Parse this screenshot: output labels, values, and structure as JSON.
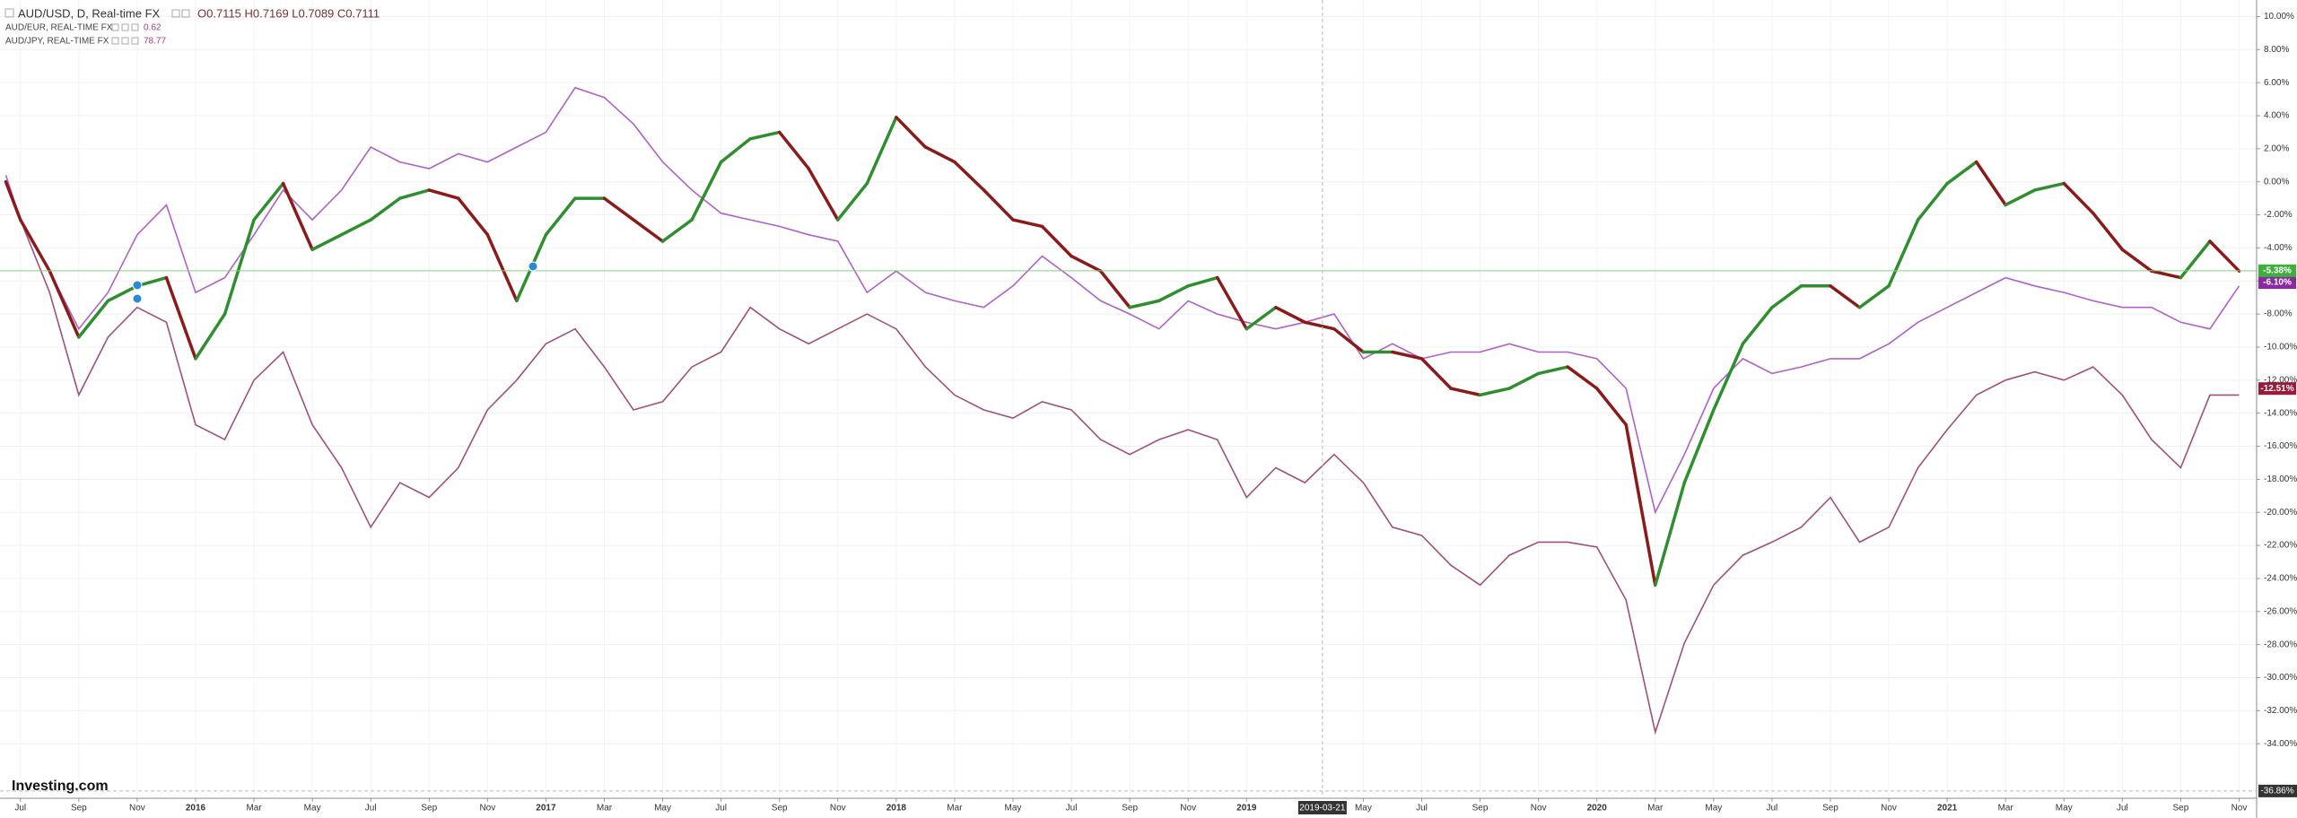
{
  "chart_data": {
    "type": "line",
    "logo": "Investing.com",
    "x": [
      -0.5,
      0,
      1,
      2,
      3,
      4,
      5,
      6,
      7,
      8,
      9,
      10,
      11,
      12,
      13,
      14,
      15,
      16,
      17,
      18,
      19,
      20,
      21,
      22,
      23,
      24,
      25,
      26,
      27,
      28,
      29,
      30,
      31,
      32,
      33,
      34,
      35,
      36,
      37,
      38,
      39,
      40,
      41,
      42,
      43,
      44,
      45,
      46,
      47,
      48,
      49,
      50,
      51,
      52,
      53,
      54,
      55,
      56,
      57,
      58,
      59,
      60,
      61,
      62,
      63,
      64,
      65,
      66,
      67,
      68,
      69,
      70,
      71,
      72,
      73,
      74,
      75,
      76
    ],
    "xlim": [
      -0.7,
      76.6
    ],
    "xticks": [
      {
        "value": 0,
        "label": "Jul"
      },
      {
        "value": 2,
        "label": "Sep"
      },
      {
        "value": 4,
        "label": "Nov"
      },
      {
        "value": 6,
        "label": "2016"
      },
      {
        "value": 8,
        "label": "Mar"
      },
      {
        "value": 10,
        "label": "May"
      },
      {
        "value": 12,
        "label": "Jul"
      },
      {
        "value": 14,
        "label": "Sep"
      },
      {
        "value": 16,
        "label": "Nov"
      },
      {
        "value": 18,
        "label": "2017"
      },
      {
        "value": 20,
        "label": "Mar"
      },
      {
        "value": 22,
        "label": "May"
      },
      {
        "value": 24,
        "label": "Jul"
      },
      {
        "value": 26,
        "label": "Sep"
      },
      {
        "value": 28,
        "label": "Nov"
      },
      {
        "value": 30,
        "label": "2018"
      },
      {
        "value": 32,
        "label": "Mar"
      },
      {
        "value": 34,
        "label": "May"
      },
      {
        "value": 36,
        "label": "Jul"
      },
      {
        "value": 38,
        "label": "Sep"
      },
      {
        "value": 40,
        "label": "Nov"
      },
      {
        "value": 42,
        "label": "2019"
      },
      {
        "value": 46,
        "label": "May"
      },
      {
        "value": 48,
        "label": "Jul"
      },
      {
        "value": 50,
        "label": "Sep"
      },
      {
        "value": 52,
        "label": "Nov"
      },
      {
        "value": 54,
        "label": "2020"
      },
      {
        "value": 56,
        "label": "Mar"
      },
      {
        "value": 58,
        "label": "May"
      },
      {
        "value": 60,
        "label": "Jul"
      },
      {
        "value": 62,
        "label": "Sep"
      },
      {
        "value": 64,
        "label": "Nov"
      },
      {
        "value": 66,
        "label": "2021"
      },
      {
        "value": 68,
        "label": "Mar"
      },
      {
        "value": 70,
        "label": "May"
      },
      {
        "value": 72,
        "label": "Jul"
      },
      {
        "value": 74,
        "label": "Sep"
      },
      {
        "value": 76,
        "label": "Nov"
      }
    ],
    "ylim": [
      -37.3,
      11
    ],
    "yticks": [
      {
        "value": 10,
        "label": "10.00%"
      },
      {
        "value": 8,
        "label": "8.00%"
      },
      {
        "value": 6,
        "label": "6.00%"
      },
      {
        "value": 4,
        "label": "4.00%"
      },
      {
        "value": 2,
        "label": "2.00%"
      },
      {
        "value": 0,
        "label": "0.00%"
      },
      {
        "value": -2,
        "label": "-2.00%"
      },
      {
        "value": -4,
        "label": "-4.00%"
      },
      {
        "value": -6,
        "label": "-6.00%"
      },
      {
        "value": -8,
        "label": "-8.00%"
      },
      {
        "value": -10,
        "label": "-10.00%"
      },
      {
        "value": -12,
        "label": "-12.00%"
      },
      {
        "value": -14,
        "label": "-14.00%"
      },
      {
        "value": -16,
        "label": "-16.00%"
      },
      {
        "value": -18,
        "label": "-18.00%"
      },
      {
        "value": -20,
        "label": "-20.00%"
      },
      {
        "value": -22,
        "label": "-22.00%"
      },
      {
        "value": -24,
        "label": "-24.00%"
      },
      {
        "value": -26,
        "label": "-26.00%"
      },
      {
        "value": -28,
        "label": "-28.00%"
      },
      {
        "value": -30,
        "label": "-30.00%"
      },
      {
        "value": -32,
        "label": "-32.00%"
      },
      {
        "value": -34,
        "label": "-34.00%"
      }
    ],
    "grid": true,
    "crosshair": {
      "x": 44.6,
      "x_label": "2019-03-21",
      "y": -36.86,
      "y_label": "-36.86%"
    },
    "series": [
      {
        "name": "AUD/USD, D, Real-time FX",
        "ohlc": "O0.7115 H0.7169 L0.7089 C0.7111",
        "style": "candles",
        "color": "#2f8f2f",
        "down_color": "#8b1a1a",
        "last_value": {
          "value": -5.38,
          "label": "-5.38%"
        },
        "values": [
          0,
          -2.3,
          -5.4,
          -9.4,
          -7.2,
          -6.3,
          -5.8,
          -10.7,
          -8,
          -2.3,
          -0.1,
          -4.1,
          -3.2,
          -2.3,
          -1,
          -0.5,
          -1,
          -3.2,
          -7.2,
          -3.2,
          -1,
          -1,
          -2.3,
          -3.6,
          -2.3,
          1.2,
          2.6,
          3,
          0.8,
          -2.3,
          -0.1,
          3.9,
          2.1,
          1.2,
          -0.5,
          -2.3,
          -2.7,
          -4.5,
          -5.4,
          -7.6,
          -7.2,
          -6.3,
          -5.8,
          -8.9,
          -7.6,
          -8.5,
          -8.9,
          -10.3,
          -10.3,
          -10.7,
          -12.5,
          -12.9,
          -12.5,
          -11.6,
          -11.2,
          -12.5,
          -14.7,
          -24.4,
          -18.2,
          -13.8,
          -9.8,
          -7.6,
          -6.3,
          -6.3,
          -7.6,
          -6.3,
          -2.3,
          -0.1,
          1.2,
          -1.4,
          -0.5,
          -0.1,
          -1.9,
          -4.1,
          -5.4,
          -5.8,
          -3.6,
          -5.4
        ]
      },
      {
        "name": "AUD/EUR, REAL-TIME FX",
        "quote": 0.62,
        "color": "#b060c8",
        "last_value": {
          "value": -6.1,
          "label": "-6.10%"
        },
        "values": [
          0.4,
          -2.3,
          -5.4,
          -8.9,
          -6.7,
          -3.2,
          -1.4,
          -6.7,
          -5.8,
          -3.2,
          -0.5,
          -2.3,
          -0.5,
          2.1,
          1.2,
          0.8,
          1.7,
          1.2,
          2.1,
          3,
          5.7,
          5.1,
          3.5,
          1.2,
          -0.5,
          -1.9,
          -2.3,
          -2.7,
          -3.2,
          -3.6,
          -6.7,
          -5.4,
          -6.7,
          -7.2,
          -7.6,
          -6.3,
          -4.5,
          -5.8,
          -7.2,
          -8,
          -8.9,
          -7.2,
          -8,
          -8.5,
          -8.9,
          -8.5,
          -8,
          -10.7,
          -9.8,
          -10.7,
          -10.3,
          -10.3,
          -9.8,
          -10.3,
          -10.3,
          -10.7,
          -12.5,
          -20,
          -16.5,
          -12.5,
          -10.7,
          -11.6,
          -11.2,
          -10.7,
          -10.7,
          -9.8,
          -8.5,
          -7.6,
          -6.7,
          -5.8,
          -6.3,
          -6.7,
          -7.2,
          -7.6,
          -7.6,
          -8.5,
          -8.9,
          -6.3
        ]
      },
      {
        "name": "AUD/JPY, REAL-TIME FX",
        "quote": 78.77,
        "color": "#a0507a",
        "last_value": {
          "value": -12.51,
          "label": "-12.51%"
        },
        "values": [
          -0.1,
          -2.3,
          -6.7,
          -12.9,
          -9.4,
          -7.6,
          -8.5,
          -14.7,
          -15.6,
          -12,
          -10.3,
          -14.7,
          -17.3,
          -20.9,
          -18.2,
          -19.1,
          -17.3,
          -13.8,
          -12,
          -9.8,
          -8.9,
          -11.2,
          -13.8,
          -13.3,
          -11.2,
          -10.3,
          -7.6,
          -8.9,
          -9.8,
          -8.9,
          -8,
          -8.9,
          -11.2,
          -12.9,
          -13.8,
          -14.3,
          -13.3,
          -13.8,
          -15.6,
          -16.5,
          -15.6,
          -15,
          -15.6,
          -19.1,
          -17.3,
          -18.2,
          -16.5,
          -18.2,
          -20.9,
          -21.4,
          -23.2,
          -24.4,
          -22.6,
          -21.8,
          -21.8,
          -22.1,
          -25.3,
          -33.3,
          -27.9,
          -24.4,
          -22.6,
          -21.8,
          -20.9,
          -19.1,
          -21.8,
          -20.9,
          -17.3,
          -15,
          -12.9,
          -12,
          -11.5,
          -12,
          -11.2,
          -12.9,
          -15.6,
          -17.3,
          -12.9,
          -12.9
        ]
      }
    ]
  }
}
